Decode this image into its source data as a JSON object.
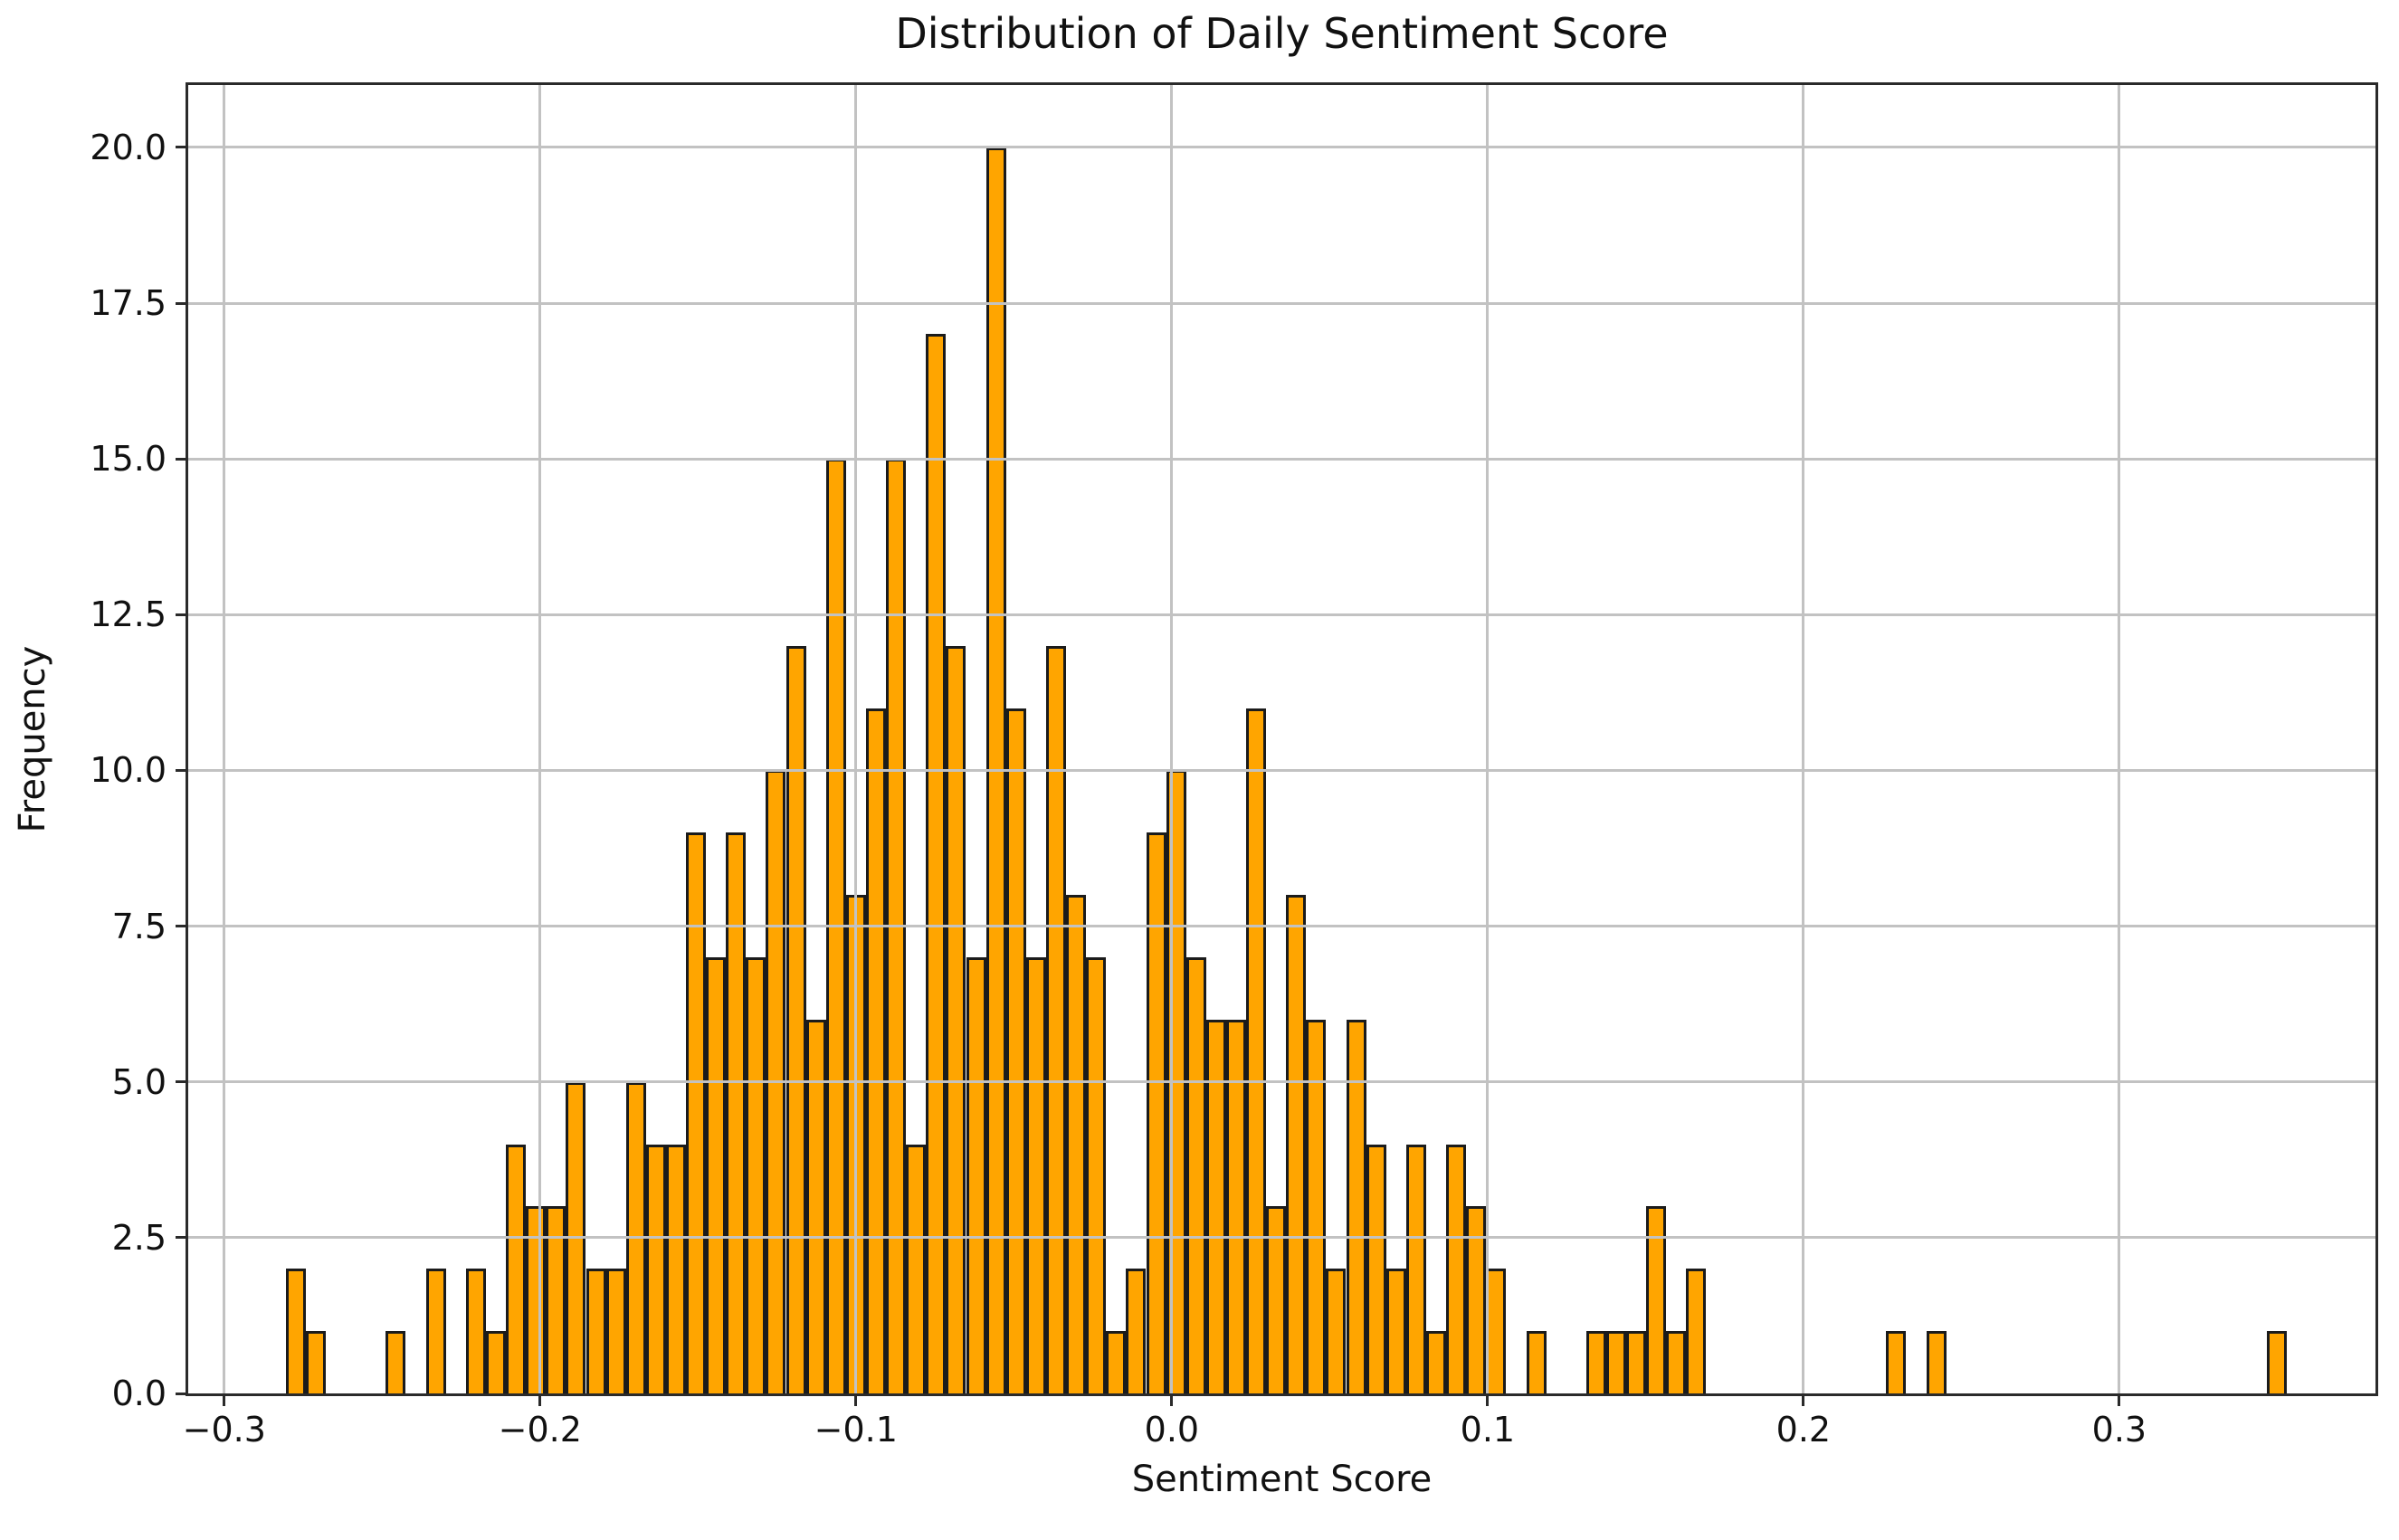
{
  "chart_data": {
    "type": "bar",
    "variant": "histogram",
    "title": "Distribution of Daily Sentiment Score",
    "xlabel": "Sentiment Score",
    "ylabel": "Frequency",
    "bins": {
      "start": -0.2805,
      "width": 0.006334,
      "count": 100
    },
    "counts": [
      2,
      1,
      0,
      0,
      0,
      1,
      0,
      2,
      0,
      2,
      1,
      4,
      3,
      3,
      5,
      2,
      2,
      5,
      4,
      4,
      9,
      7,
      9,
      7,
      10,
      12,
      6,
      15,
      8,
      11,
      15,
      4,
      17,
      12,
      7,
      20,
      11,
      7,
      12,
      8,
      7,
      1,
      2,
      9,
      10,
      7,
      6,
      6,
      11,
      3,
      8,
      6,
      2,
      6,
      4,
      2,
      4,
      1,
      4,
      3,
      2,
      0,
      1,
      0,
      0,
      1,
      1,
      1,
      3,
      1,
      2,
      0,
      0,
      0,
      0,
      0,
      0,
      0,
      0,
      0,
      1,
      0,
      1,
      0,
      0,
      0,
      0,
      0,
      0,
      0,
      0,
      0,
      0,
      0,
      0,
      0,
      0,
      0,
      0,
      1
    ],
    "xlim": [
      -0.3114,
      0.3811
    ],
    "ylim": [
      0,
      21
    ],
    "xticks": [
      {
        "value": -0.3,
        "label": "−0.3"
      },
      {
        "value": -0.2,
        "label": "−0.2"
      },
      {
        "value": -0.1,
        "label": "−0.1"
      },
      {
        "value": 0.0,
        "label": "0.0"
      },
      {
        "value": 0.1,
        "label": "0.1"
      },
      {
        "value": 0.2,
        "label": "0.2"
      },
      {
        "value": 0.3,
        "label": "0.3"
      }
    ],
    "yticks": [
      {
        "value": 0.0,
        "label": "0.0"
      },
      {
        "value": 2.5,
        "label": "2.5"
      },
      {
        "value": 5.0,
        "label": "5.0"
      },
      {
        "value": 7.5,
        "label": "7.5"
      },
      {
        "value": 10.0,
        "label": "10.0"
      },
      {
        "value": 12.5,
        "label": "12.5"
      },
      {
        "value": 15.0,
        "label": "15.0"
      },
      {
        "value": 17.5,
        "label": "17.5"
      },
      {
        "value": 20.0,
        "label": "20.0"
      }
    ],
    "grid": true,
    "grid_above_bars": true,
    "legend": null,
    "colors": {
      "bar_fill": "#FFA500",
      "bar_edge": "#1b1b1b",
      "grid": "#c2c2c2",
      "spine": "#2a2a2a",
      "text": "#111111",
      "background": "#ffffff"
    }
  }
}
